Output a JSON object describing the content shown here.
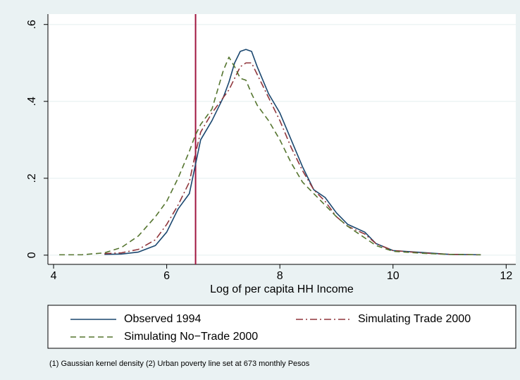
{
  "chart_data": {
    "type": "line",
    "x_label": "Log of per capita HH Income",
    "note": "(1) Gaussian kernel density (2) Urban poverty line set at 673 monthly Pesos",
    "x": [
      4.1,
      4.5,
      4.9,
      5.2,
      5.5,
      5.8,
      6.0,
      6.2,
      6.4,
      6.5,
      6.6,
      6.8,
      7.0,
      7.1,
      7.2,
      7.3,
      7.4,
      7.5,
      7.6,
      7.8,
      8.0,
      8.2,
      8.4,
      8.6,
      8.8,
      9.0,
      9.2,
      9.5,
      9.7,
      10.0,
      10.5,
      11.0,
      11.55
    ],
    "series": [
      {
        "name": "Observed 1994",
        "color": "#1a476f",
        "dash": "solid",
        "values": [
          null,
          null,
          0.002,
          0.003,
          0.008,
          0.025,
          0.06,
          0.12,
          0.16,
          0.23,
          0.3,
          0.35,
          0.41,
          0.45,
          0.5,
          0.53,
          0.535,
          0.53,
          0.49,
          0.42,
          0.37,
          0.3,
          0.23,
          0.17,
          0.15,
          0.11,
          0.08,
          0.06,
          0.03,
          0.012,
          0.007,
          0.002,
          0.001
        ]
      },
      {
        "name": "Simulating Trade 2000",
        "color": "#90353b",
        "dash": "dashdot",
        "values": [
          null,
          null,
          0.004,
          0.006,
          0.015,
          0.04,
          0.08,
          0.13,
          0.19,
          0.26,
          0.32,
          0.37,
          0.41,
          0.43,
          0.46,
          0.49,
          0.5,
          0.5,
          0.47,
          0.41,
          0.35,
          0.28,
          0.22,
          0.17,
          0.14,
          0.1,
          0.075,
          0.055,
          0.03,
          0.012,
          0.006,
          0.002,
          0.001
        ]
      },
      {
        "name": "Simulating No−Trade 2000",
        "color": "#55752f",
        "dash": "dash",
        "values": [
          0.001,
          0.001,
          0.006,
          0.02,
          0.05,
          0.1,
          0.14,
          0.2,
          0.27,
          0.31,
          0.34,
          0.38,
          0.48,
          0.515,
          0.49,
          0.46,
          0.455,
          0.42,
          0.39,
          0.35,
          0.3,
          0.24,
          0.19,
          0.16,
          0.13,
          0.1,
          0.075,
          0.045,
          0.025,
          0.01,
          0.005,
          0.002,
          0.001
        ]
      }
    ],
    "reference_line": {
      "x": 6.51,
      "color": "#a0153e"
    },
    "xlim": [
      3.9,
      12.17
    ],
    "xticks": [
      4,
      6,
      8,
      10,
      12
    ],
    "ylim": [
      -0.024,
      0.627
    ],
    "yticks": [
      0,
      {
        "value": 0.2,
        "label": ".2"
      },
      {
        "value": 0.4,
        "label": ".4"
      },
      {
        "value": 0.6,
        "label": ".6"
      }
    ],
    "grid": true,
    "legend": "bottom"
  }
}
